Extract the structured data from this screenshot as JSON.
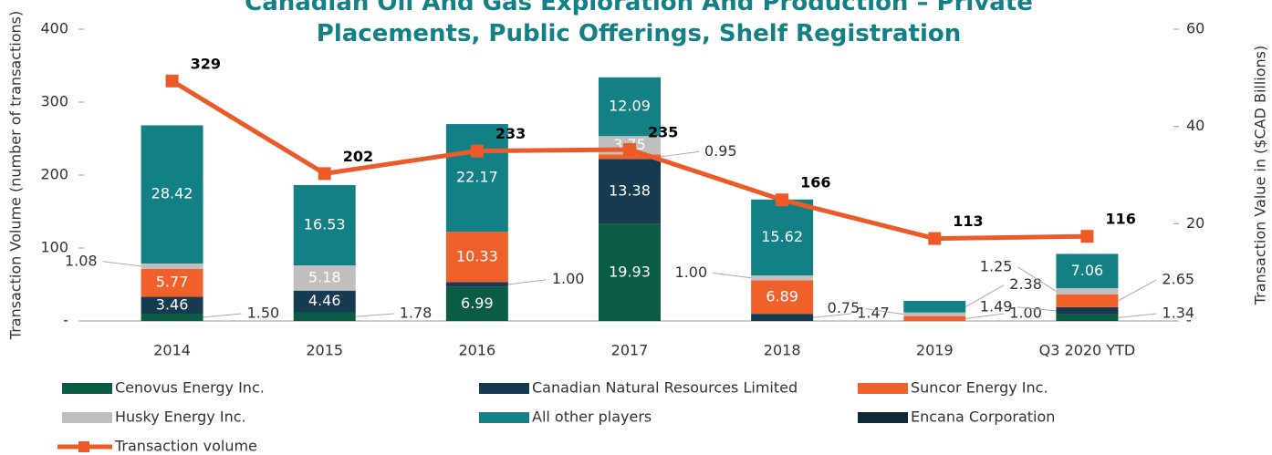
{
  "chart_data": {
    "type": "stacked-bar-line",
    "title": "Canadian Oil And Gas Exploration And Production – Private Placements, Public Offerings, Shelf Registration",
    "y_label": "Transaction Volume (number of transactions)",
    "y2_label": "Transaction Value in ($CAD  Billions)",
    "categories": [
      "2014",
      "2015",
      "2016",
      "2017",
      "2018",
      "2019",
      "Q3 2020 YTD"
    ],
    "ylim": [
      0,
      400
    ],
    "yticks": [
      {
        "value": 0,
        "label": "-"
      },
      100,
      200,
      300,
      400
    ],
    "y2lim": [
      0,
      60
    ],
    "y2ticks": [
      {
        "value": 0,
        "label": "-"
      },
      20,
      40,
      60
    ],
    "series": [
      {
        "name": "Cenovus Energy Inc.",
        "color": "#0b5c45",
        "axis": "y2",
        "kind": "bar",
        "values": [
          1.5,
          1.78,
          6.99,
          19.93,
          null,
          null,
          1.34
        ],
        "value_labels": [
          "1.50",
          "1.78",
          "6.99",
          "19.93",
          null,
          null,
          "1.34"
        ]
      },
      {
        "name": "Canadian Natural Resources Limited",
        "color": "#163a4f",
        "axis": "y2",
        "kind": "bar",
        "values": [
          3.46,
          4.46,
          1.0,
          13.38,
          1.47,
          null,
          1.49
        ],
        "value_labels": [
          "3.46",
          "4.46",
          "1.00",
          "13.38",
          "1.47",
          null,
          "1.49"
        ]
      },
      {
        "name": "Suncor Energy Inc.",
        "color": "#f0602b",
        "axis": "y2",
        "kind": "bar",
        "values": [
          5.77,
          null,
          10.33,
          0.95,
          6.89,
          1.0,
          2.65
        ],
        "value_labels": [
          "5.77",
          null,
          "10.33",
          "0.95",
          "6.89",
          "1.00",
          "2.65"
        ]
      },
      {
        "name": "Husky Energy Inc.",
        "color": "#bfbfbf",
        "axis": "y2",
        "kind": "bar",
        "values": [
          1.08,
          5.18,
          null,
          3.75,
          1.0,
          0.75,
          1.25
        ],
        "value_labels": [
          "1.08",
          "5.18",
          null,
          "3.75",
          "1.00",
          "0.75",
          "1.25"
        ]
      },
      {
        "name": "All other players",
        "color": "#138085",
        "axis": "y2",
        "kind": "bar",
        "values": [
          28.42,
          16.53,
          22.17,
          12.09,
          15.62,
          2.38,
          7.06
        ],
        "value_labels": [
          "28.42",
          "16.53",
          "22.17",
          "12.09",
          "15.62",
          "2.38",
          "7.06"
        ]
      },
      {
        "name": "Encana Corporation",
        "color": "#0e2a36",
        "axis": "y2",
        "kind": "bar",
        "values": [
          null,
          null,
          null,
          null,
          null,
          null,
          null
        ]
      },
      {
        "name": "Transaction volume",
        "color": "#ec5a28",
        "axis": "y",
        "kind": "line",
        "values": [
          329,
          202,
          233,
          235,
          166,
          113,
          116
        ]
      }
    ]
  }
}
